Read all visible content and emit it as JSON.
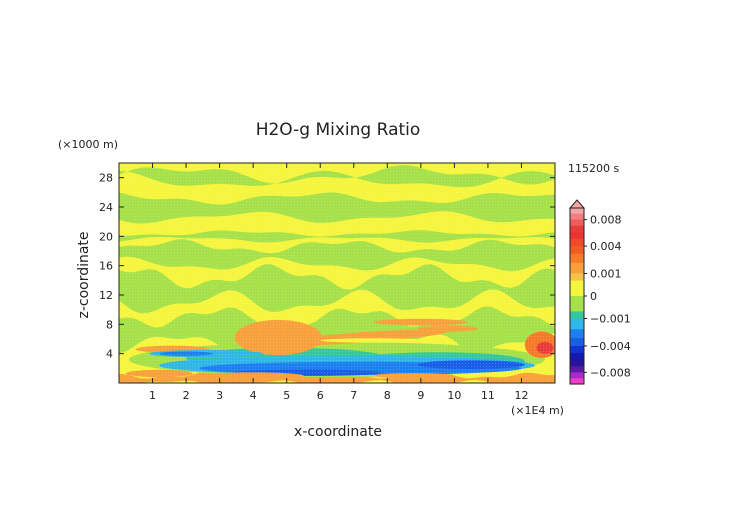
{
  "chart_data": {
    "type": "heatmap",
    "title": "H2O-g Mixing Ratio",
    "time_label": "115200 s",
    "xlabel": "x-coordinate",
    "ylabel": "z-coordinate",
    "x_unit": "(×1E4 m)",
    "y_unit": "(×1000 m)",
    "xlim": [
      0,
      13
    ],
    "ylim": [
      0,
      30
    ],
    "x_ticks": [
      "1",
      "2",
      "3",
      "4",
      "5",
      "6",
      "7",
      "8",
      "9",
      "10",
      "11",
      "12"
    ],
    "y_ticks": [
      "4",
      "8",
      "12",
      "16",
      "20",
      "24",
      "28"
    ],
    "colorbar": {
      "min": -0.01,
      "max": 0.01,
      "labels": [
        {
          "text": "0.008",
          "value": 0.008
        },
        {
          "text": "0.004",
          "value": 0.004
        },
        {
          "text": "0.001",
          "value": 0.001
        },
        {
          "text": "0",
          "value": 0
        },
        {
          "text": "−0.001",
          "value": -0.001
        },
        {
          "text": "−0.004",
          "value": -0.004
        },
        {
          "text": "−0.008",
          "value": -0.008
        }
      ],
      "bands": [
        {
          "from": 0.009,
          "to": 0.01,
          "color": "#f4a6a6"
        },
        {
          "from": 0.008,
          "to": 0.009,
          "color": "#f27f7f"
        },
        {
          "from": 0.007,
          "to": 0.008,
          "color": "#ee5c5c"
        },
        {
          "from": 0.006,
          "to": 0.007,
          "color": "#ea3b3b"
        },
        {
          "from": 0.005,
          "to": 0.006,
          "color": "#ec3333"
        },
        {
          "from": 0.004,
          "to": 0.005,
          "color": "#f04a2a"
        },
        {
          "from": 0.003,
          "to": 0.004,
          "color": "#f25c24"
        },
        {
          "from": 0.002,
          "to": 0.003,
          "color": "#f57a2a"
        },
        {
          "from": 0.001,
          "to": 0.002,
          "color": "#f8a03c"
        },
        {
          "from": 0.0005,
          "to": 0.001,
          "color": "#f5c24a"
        },
        {
          "from": 0.0,
          "to": 0.0005,
          "color": "#f6f53e"
        },
        {
          "from": -0.0005,
          "to": 0.0,
          "color": "#a6e14a"
        },
        {
          "from": -0.001,
          "to": -0.0005,
          "color": "#36c89a"
        },
        {
          "from": -0.002,
          "to": -0.001,
          "color": "#2fb7e8"
        },
        {
          "from": -0.003,
          "to": -0.002,
          "color": "#1e7ff0"
        },
        {
          "from": -0.004,
          "to": -0.003,
          "color": "#1a5ee8"
        },
        {
          "from": -0.005,
          "to": -0.004,
          "color": "#1432d2"
        },
        {
          "from": -0.006,
          "to": -0.005,
          "color": "#1418b0"
        },
        {
          "from": -0.007,
          "to": -0.006,
          "color": "#28149a"
        },
        {
          "from": -0.008,
          "to": -0.007,
          "color": "#5a1aa6"
        },
        {
          "from": -0.009,
          "to": -0.008,
          "color": "#a42cc8"
        },
        {
          "from": -0.01,
          "to": -0.009,
          "color": "#ee3cc8"
        }
      ]
    },
    "regions": [
      {
        "name": "background",
        "value": 0.0003,
        "color": "#f6f53e"
      },
      {
        "name": "upper-band-28",
        "value": -0.0003,
        "color": "#a6e14a",
        "x": [
          0,
          13
        ],
        "y": [
          27.6,
          28.4
        ]
      },
      {
        "name": "upper-band-24",
        "value": -0.0003,
        "color": "#a6e14a",
        "x": [
          0,
          13
        ],
        "y": [
          22.6,
          25.2
        ]
      },
      {
        "name": "band-20",
        "value": -0.0003,
        "color": "#a6e14a",
        "x": [
          0,
          13
        ],
        "y": [
          19.6,
          20.4
        ]
      },
      {
        "name": "band-18",
        "value": -0.0003,
        "color": "#a6e14a",
        "x": [
          0,
          13
        ],
        "y": [
          16.2,
          18.6
        ]
      },
      {
        "name": "band-12",
        "value": -0.0003,
        "color": "#a6e14a",
        "x": [
          0,
          13
        ],
        "y": [
          11.0,
          14.5
        ]
      },
      {
        "name": "band-8",
        "value": -0.0003,
        "color": "#a6e14a",
        "x": [
          0,
          13
        ],
        "y": [
          5.5,
          9.0
        ]
      },
      {
        "name": "warm-plume",
        "value": 0.002,
        "color": "#f8a03c",
        "x": [
          3.5,
          6.0
        ],
        "y": [
          3.0,
          8.5
        ]
      },
      {
        "name": "cool-layer",
        "value": -0.003,
        "color": "#1e7ff0",
        "x": [
          1.0,
          12.5
        ],
        "y": [
          0.5,
          4.0
        ]
      },
      {
        "name": "surface-warm",
        "value": 0.0015,
        "color": "#f8a03c",
        "x": [
          0,
          13
        ],
        "y": [
          0,
          1.0
        ]
      }
    ]
  }
}
